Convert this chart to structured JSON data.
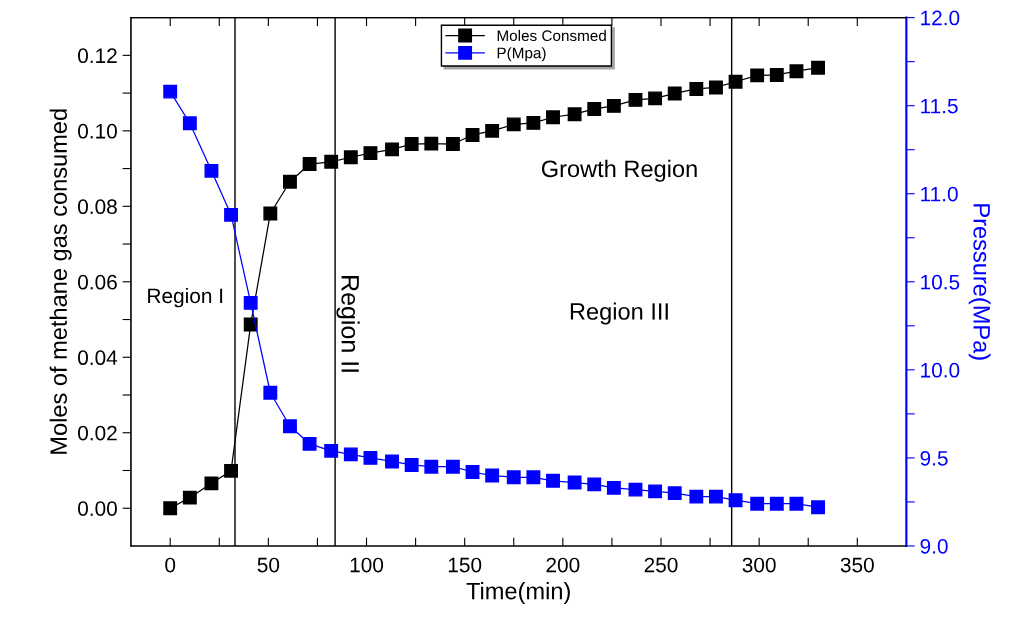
{
  "chart_data": {
    "type": "line",
    "xlabel": "Time(min)",
    "ylabel": "Moles of methane gas consumed",
    "y2label": "Pressure(MPa)",
    "x": [
      0,
      10,
      21,
      31,
      41,
      51,
      61,
      71,
      82,
      92,
      102,
      113,
      123,
      133,
      144,
      154,
      164,
      175,
      185,
      195,
      206,
      216,
      226,
      237,
      247,
      257,
      268,
      278,
      288,
      299,
      309,
      319,
      330
    ],
    "series": [
      {
        "name": "Moles Consmed",
        "color": "#000000",
        "values": [
          0,
          0.0028,
          0.0066,
          0.0099,
          0.0487,
          0.0781,
          0.0865,
          0.0912,
          0.0918,
          0.093,
          0.0941,
          0.0951,
          0.0965,
          0.0966,
          0.0965,
          0.0989,
          0.1,
          0.1017,
          0.1021,
          0.1036,
          0.1044,
          0.1058,
          0.1066,
          0.1082,
          0.1086,
          0.1099,
          0.1111,
          0.1115,
          0.113,
          0.1147,
          0.1148,
          0.1158,
          0.1167
        ]
      },
      {
        "name": "P(Mpa)",
        "color": "#0000ff",
        "axis": "y2",
        "values": [
          11.58,
          11.4,
          11.13,
          10.88,
          10.38,
          9.87,
          9.68,
          9.58,
          9.54,
          9.52,
          9.5,
          9.48,
          9.46,
          9.45,
          9.45,
          9.42,
          9.4,
          9.39,
          9.39,
          9.37,
          9.36,
          9.35,
          9.33,
          9.32,
          9.31,
          9.3,
          9.28,
          9.28,
          9.26,
          9.24,
          9.24,
          9.24,
          9.22
        ]
      }
    ],
    "marker": "square",
    "line_style": "solid",
    "legend": "top",
    "grid": false,
    "xlim": [
      -20,
      375
    ],
    "xticks": [
      0,
      {
        "value": 25,
        "label": null
      },
      50,
      {
        "value": 75,
        "label": null
      },
      100,
      {
        "value": 125,
        "label": null
      },
      150,
      {
        "value": 175,
        "label": null
      },
      200,
      {
        "value": 225,
        "label": null
      },
      250,
      {
        "value": 275,
        "label": null
      },
      300,
      {
        "value": 325,
        "label": null
      },
      350
    ],
    "ylim": [
      -0.01,
      0.13
    ],
    "yticks": [
      {
        "value": 0,
        "label": "0.00"
      },
      {
        "value": 0.01,
        "label": null
      },
      {
        "value": 0.02,
        "label": "0.02"
      },
      {
        "value": 0.03,
        "label": null
      },
      {
        "value": 0.04,
        "label": "0.04"
      },
      {
        "value": 0.05,
        "label": null
      },
      {
        "value": 0.06,
        "label": "0.06"
      },
      {
        "value": 0.07,
        "label": null
      },
      {
        "value": 0.08,
        "label": "0.08"
      },
      {
        "value": 0.09,
        "label": null
      },
      {
        "value": 0.1,
        "label": "0.10"
      },
      {
        "value": 0.11,
        "label": null
      },
      {
        "value": 0.12,
        "label": "0.12"
      }
    ],
    "y2lim": [
      9.0,
      12.0
    ],
    "y2ticks": [
      {
        "value": 9,
        "label": "9.0"
      },
      {
        "value": 9.25,
        "label": null
      },
      {
        "value": 9.5,
        "label": "9.5"
      },
      {
        "value": 9.75,
        "label": null
      },
      {
        "value": 10,
        "label": "10.0"
      },
      {
        "value": 10.25,
        "label": null
      },
      {
        "value": 10.5,
        "label": "10.5"
      },
      {
        "value": 10.75,
        "label": null
      },
      {
        "value": 11,
        "label": "11.0"
      },
      {
        "value": 11.25,
        "label": null
      },
      {
        "value": 11.5,
        "label": "11.5"
      },
      {
        "value": 11.75,
        "label": null
      },
      {
        "value": 12,
        "label": "12.0"
      }
    ],
    "ref_lines": [
      {
        "axis": "x",
        "value": 33,
        "color": "#000000"
      },
      {
        "axis": "x",
        "value": 84,
        "color": "#000000"
      },
      {
        "axis": "x",
        "value": 286,
        "color": "#000000"
      }
    ],
    "annotations": [
      "Region I",
      "Region II",
      "Growth Region",
      "Region III"
    ]
  }
}
